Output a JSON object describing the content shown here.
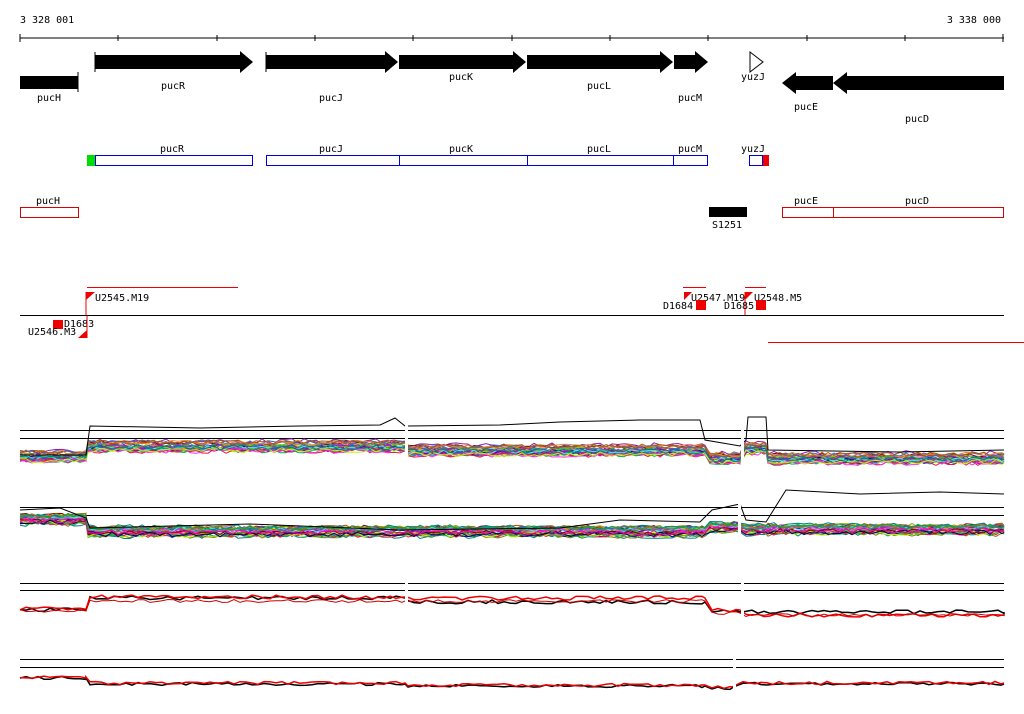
{
  "coords": {
    "start": "3 328 001",
    "end": "3 338 000"
  },
  "genes": {
    "pucH": "pucH",
    "pucR": "pucR",
    "pucJ": "pucJ",
    "pucK": "pucK",
    "pucL": "pucL",
    "pucM": "pucM",
    "yuzJ": "yuzJ",
    "pucE": "pucE",
    "pucD": "pucD"
  },
  "segment_label": "S1251",
  "features": {
    "U2545_M19": "U2545.M19",
    "U2546_M3": "U2546.M3",
    "D1683": "D1683",
    "U2547_M19": "U2547.M19",
    "D1684": "D1684",
    "U2548_M5": "U2548.M5",
    "D1685": "D1685"
  },
  "colors": {
    "gene_fill": "#000000",
    "forward_box": "#0000dd",
    "reverse_box": "#dd0000",
    "start_marker": "#00dd00",
    "stop_marker": "#ee0000",
    "feature_red": "#ee0000"
  }
}
